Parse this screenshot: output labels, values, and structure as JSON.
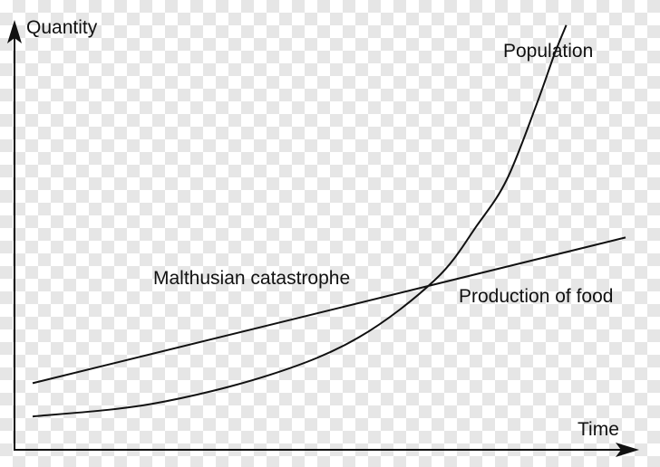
{
  "chart_data": {
    "type": "line",
    "title": "",
    "xlabel": "Time",
    "ylabel": "Quantity",
    "xlim": [
      0,
      10
    ],
    "ylim": [
      0,
      10
    ],
    "grid": false,
    "legend": "none",
    "series": [
      {
        "name": "Population",
        "x": [
          0,
          2,
          4,
          5.5,
          6.8,
          7.5,
          8,
          8.5,
          8.8,
          9
        ],
        "y": [
          0.8,
          1.1,
          1.8,
          2.7,
          4.1,
          5.4,
          6.5,
          8.3,
          9.5,
          10.2
        ]
      },
      {
        "name": "Production of food",
        "x": [
          0,
          10
        ],
        "y": [
          1.6,
          5.1
        ]
      }
    ],
    "annotations": [
      {
        "text": "Malthusian catastrophe",
        "x": 6.95,
        "y": 4.0
      }
    ],
    "colors": {
      "line": "#111111",
      "axis": "#111111"
    }
  }
}
